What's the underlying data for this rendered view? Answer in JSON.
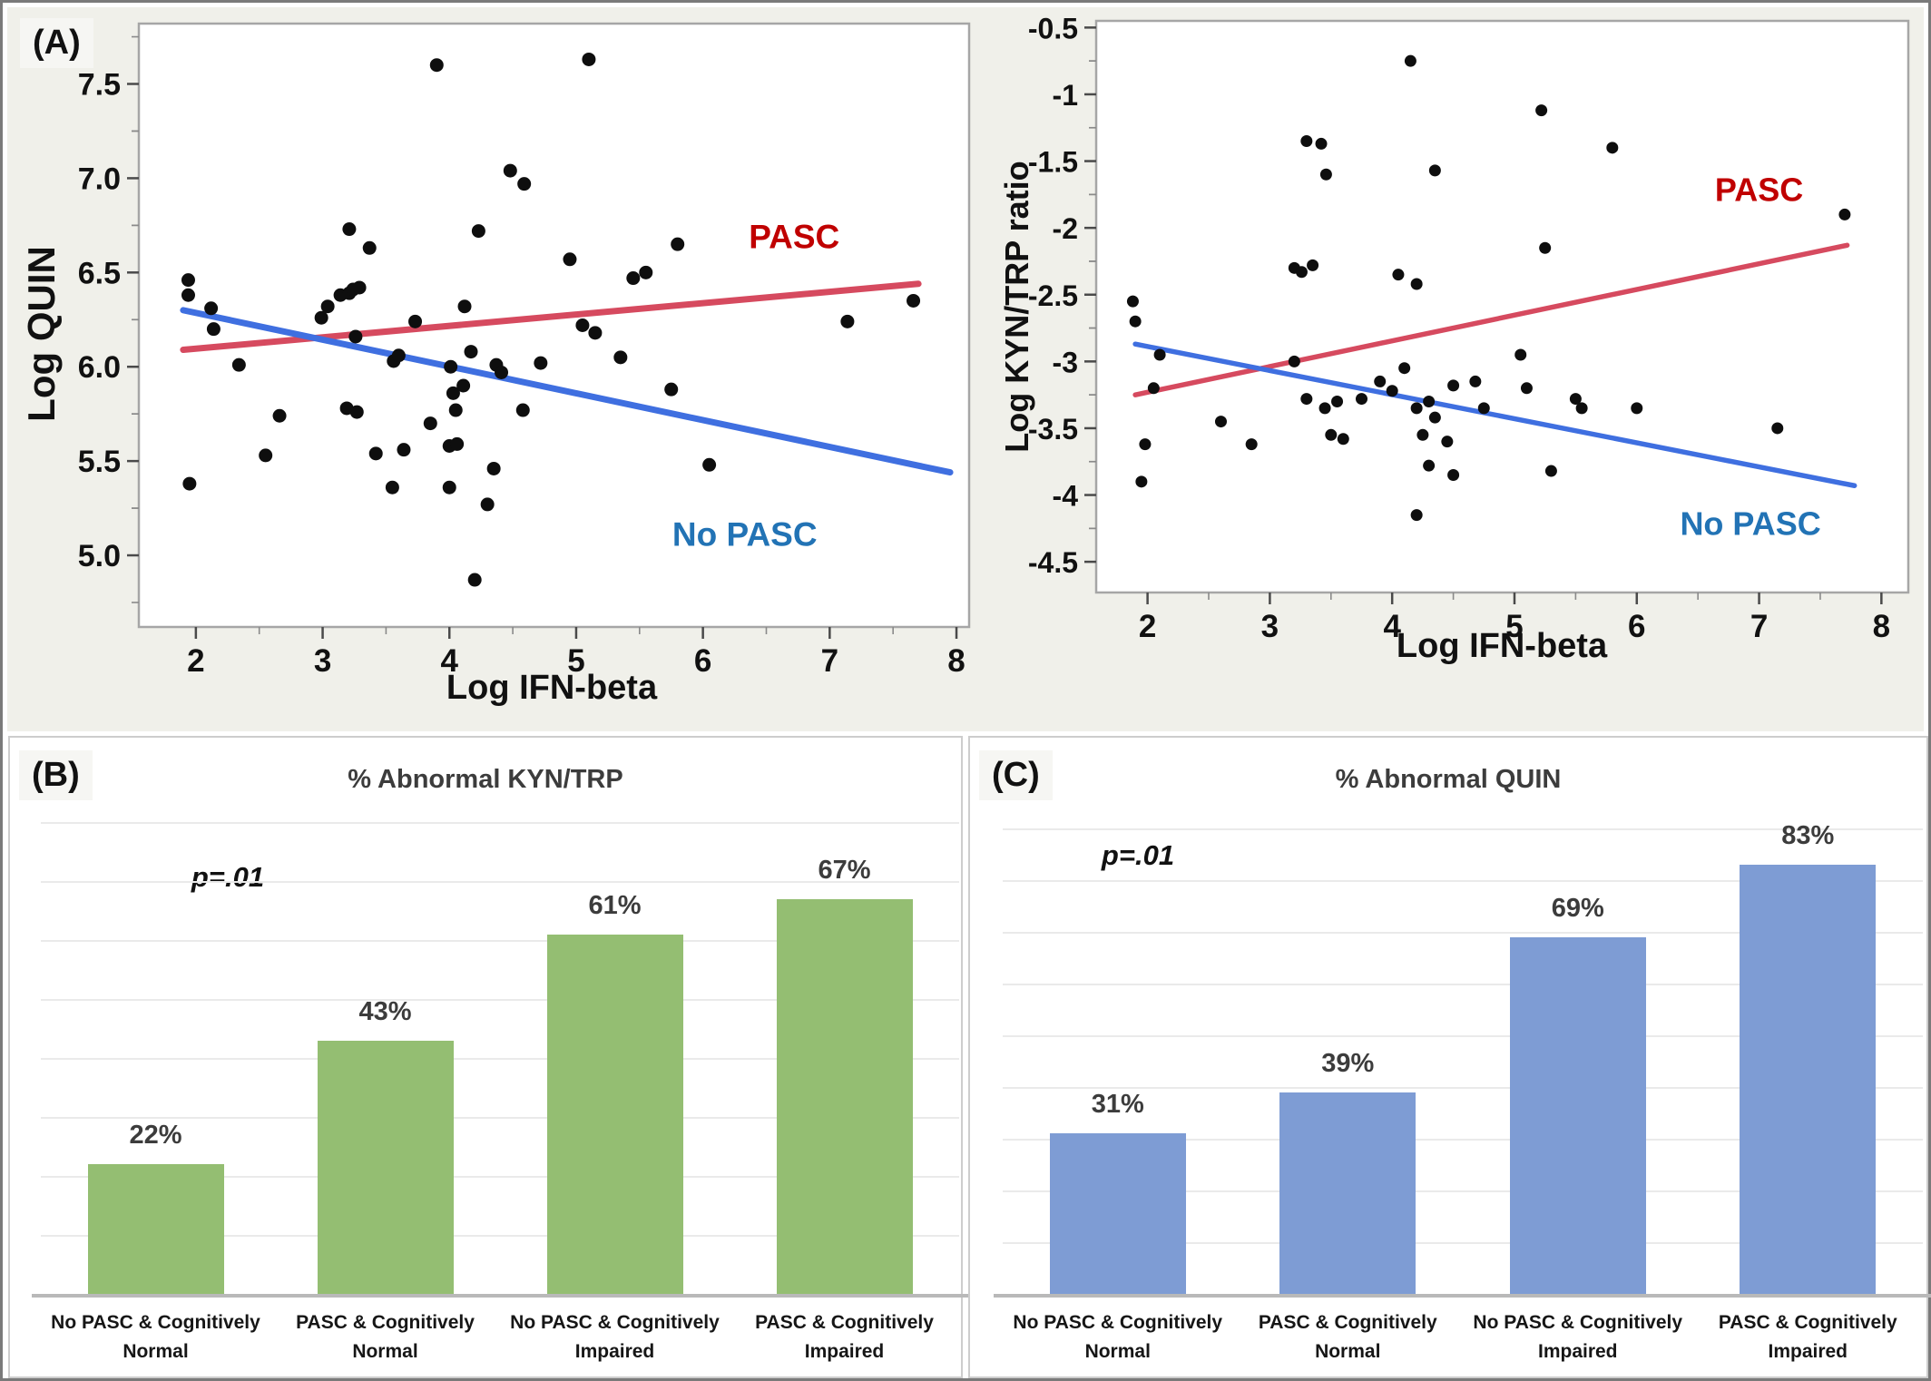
{
  "figure": {
    "panel_a_label": "(A)",
    "panel_b_label": "(B)",
    "panel_c_label": "(C)"
  },
  "colors": {
    "panel_a_bg": "#F0F0EA",
    "pasc_line": "#D64A5F",
    "pasc_label": "#C00000",
    "nopasc_line": "#3F6FE0",
    "nopasc_label": "#2273B5",
    "dot": "#0E0E0E",
    "green_bar": "#94BE72",
    "blue_bar": "#7E9CD4"
  },
  "chart_data": [
    {
      "type": "scatter",
      "panel": "A-left",
      "xlabel": "Log IFN-beta",
      "ylabel": "Log QUIN",
      "xlim": [
        1.55,
        8.1
      ],
      "ylim": [
        4.62,
        7.82
      ],
      "xticks": [
        2,
        3,
        4,
        5,
        6,
        7,
        8
      ],
      "yticks": [
        5.0,
        5.5,
        6.0,
        6.5,
        7.0,
        7.5
      ],
      "ytick_labels": [
        "5.0",
        "5.5",
        "6.0",
        "6.5",
        "7.0",
        "7.5"
      ],
      "points": [
        [
          1.94,
          6.46
        ],
        [
          1.94,
          6.38
        ],
        [
          2.12,
          6.31
        ],
        [
          2.14,
          6.2
        ],
        [
          2.34,
          6.01
        ],
        [
          2.66,
          5.74
        ],
        [
          2.55,
          5.53
        ],
        [
          1.95,
          5.38
        ],
        [
          2.99,
          6.26
        ],
        [
          3.04,
          6.32
        ],
        [
          3.14,
          6.38
        ],
        [
          3.21,
          6.39
        ],
        [
          3.24,
          6.41
        ],
        [
          3.29,
          6.42
        ],
        [
          3.37,
          6.63
        ],
        [
          3.26,
          6.16
        ],
        [
          3.56,
          6.03
        ],
        [
          3.6,
          6.06
        ],
        [
          3.19,
          5.78
        ],
        [
          3.27,
          5.76
        ],
        [
          3.73,
          6.24
        ],
        [
          4.12,
          6.32
        ],
        [
          4.17,
          6.08
        ],
        [
          4.01,
          6.0
        ],
        [
          4.03,
          5.86
        ],
        [
          4.11,
          5.9
        ],
        [
          4.37,
          6.01
        ],
        [
          4.41,
          5.97
        ],
        [
          4.72,
          6.02
        ],
        [
          3.85,
          5.7
        ],
        [
          4.05,
          5.77
        ],
        [
          4.58,
          5.77
        ],
        [
          4.0,
          5.58
        ],
        [
          4.06,
          5.59
        ],
        [
          3.64,
          5.56
        ],
        [
          3.42,
          5.54
        ],
        [
          3.21,
          6.73
        ],
        [
          4.23,
          6.72
        ],
        [
          4.48,
          7.04
        ],
        [
          4.59,
          6.97
        ],
        [
          3.9,
          7.6
        ],
        [
          5.1,
          7.63
        ],
        [
          4.95,
          6.57
        ],
        [
          5.05,
          6.22
        ],
        [
          5.15,
          6.18
        ],
        [
          5.35,
          6.05
        ],
        [
          5.55,
          6.5
        ],
        [
          5.45,
          6.47
        ],
        [
          5.8,
          6.65
        ],
        [
          5.75,
          5.88
        ],
        [
          6.05,
          5.48
        ],
        [
          7.14,
          6.24
        ],
        [
          7.66,
          6.35
        ],
        [
          4.2,
          4.87
        ],
        [
          4.3,
          5.27
        ],
        [
          3.55,
          5.36
        ],
        [
          4.35,
          5.46
        ],
        [
          4.0,
          5.36
        ]
      ],
      "trend_lines": [
        {
          "label": "PASC",
          "x1": 1.9,
          "y1": 6.09,
          "x2": 7.7,
          "y2": 6.44,
          "label_x": 6.72,
          "label_y": 6.63
        },
        {
          "label": "No PASC",
          "x1": 1.9,
          "y1": 6.3,
          "x2": 7.95,
          "y2": 5.44,
          "label_x": 6.33,
          "label_y": 5.05
        }
      ]
    },
    {
      "type": "scatter",
      "panel": "A-right",
      "xlabel": "Log IFN-beta",
      "ylabel": "Log KYN/TRP ratio",
      "xlim": [
        1.58,
        8.22
      ],
      "ylim": [
        -4.73,
        -0.45
      ],
      "xticks": [
        2,
        3,
        4,
        5,
        6,
        7,
        8
      ],
      "yticks": [
        -0.5,
        -1,
        -1.5,
        -2,
        -2.5,
        -3,
        -3.5,
        -4,
        -4.5
      ],
      "ytick_labels": [
        "-0.5",
        "-1",
        "-1.5",
        "-2",
        "-2.5",
        "-3",
        "-3.5",
        "-4",
        "-4.5"
      ],
      "points": [
        [
          1.88,
          -2.55
        ],
        [
          1.9,
          -2.7
        ],
        [
          2.1,
          -2.95
        ],
        [
          2.05,
          -3.2
        ],
        [
          1.98,
          -3.62
        ],
        [
          1.95,
          -3.9
        ],
        [
          2.6,
          -3.45
        ],
        [
          2.85,
          -3.62
        ],
        [
          3.2,
          -2.3
        ],
        [
          3.26,
          -2.33
        ],
        [
          3.35,
          -2.28
        ],
        [
          3.3,
          -1.35
        ],
        [
          3.42,
          -1.37
        ],
        [
          3.46,
          -1.6
        ],
        [
          3.2,
          -3.0
        ],
        [
          3.3,
          -3.28
        ],
        [
          3.45,
          -3.35
        ],
        [
          3.55,
          -3.3
        ],
        [
          3.5,
          -3.55
        ],
        [
          3.6,
          -3.58
        ],
        [
          3.75,
          -3.28
        ],
        [
          3.9,
          -3.15
        ],
        [
          4.0,
          -3.22
        ],
        [
          4.1,
          -3.05
        ],
        [
          4.35,
          -1.57
        ],
        [
          4.15,
          -0.75
        ],
        [
          4.05,
          -2.35
        ],
        [
          4.2,
          -2.42
        ],
        [
          4.2,
          -3.35
        ],
        [
          4.3,
          -3.3
        ],
        [
          4.35,
          -3.42
        ],
        [
          4.25,
          -3.55
        ],
        [
          4.45,
          -3.6
        ],
        [
          4.3,
          -3.78
        ],
        [
          4.5,
          -3.85
        ],
        [
          4.2,
          -4.15
        ],
        [
          4.5,
          -3.18
        ],
        [
          4.68,
          -3.15
        ],
        [
          4.75,
          -3.35
        ],
        [
          5.05,
          -2.95
        ],
        [
          5.1,
          -3.2
        ],
        [
          5.22,
          -1.12
        ],
        [
          5.25,
          -2.15
        ],
        [
          5.3,
          -3.82
        ],
        [
          5.5,
          -3.28
        ],
        [
          5.55,
          -3.35
        ],
        [
          5.8,
          -1.4
        ],
        [
          6.0,
          -3.35
        ],
        [
          7.15,
          -3.5
        ],
        [
          7.7,
          -1.9
        ]
      ],
      "trend_lines": [
        {
          "label": "PASC",
          "x1": 1.9,
          "y1": -3.25,
          "x2": 7.72,
          "y2": -2.13,
          "label_x": 7.0,
          "label_y": -1.8
        },
        {
          "label": "No PASC",
          "x1": 1.9,
          "y1": -2.87,
          "x2": 7.78,
          "y2": -3.93,
          "label_x": 6.93,
          "label_y": -4.3
        }
      ]
    },
    {
      "type": "bar",
      "panel": "B",
      "title": "% Abnormal KYN/TRP",
      "p_value_label": "p=.01",
      "categories": [
        "No PASC & Cognitively Normal",
        "PASC & Cognitively Normal",
        "No PASC & Cognitively Impaired",
        "PASC & Cognitively Impaired"
      ],
      "values": [
        22,
        43,
        61,
        67
      ],
      "value_labels": [
        "22%",
        "43%",
        "61%",
        "67%"
      ],
      "bar_color": "#94BE72",
      "ylim": [
        0,
        80
      ],
      "grid_step": 10,
      "grid_on": true
    },
    {
      "type": "bar",
      "panel": "C",
      "title": "% Abnormal QUIN",
      "p_value_label": "p=.01",
      "categories": [
        "No PASC & Cognitively Normal",
        "PASC & Cognitively Normal",
        "No PASC & Cognitively Impaired",
        "PASC & Cognitively Impaired"
      ],
      "values": [
        31,
        39,
        69,
        83
      ],
      "value_labels": [
        "31%",
        "39%",
        "69%",
        "83%"
      ],
      "bar_color": "#7E9CD4",
      "ylim": [
        0,
        90
      ],
      "grid_step": 10,
      "grid_on": true
    }
  ]
}
